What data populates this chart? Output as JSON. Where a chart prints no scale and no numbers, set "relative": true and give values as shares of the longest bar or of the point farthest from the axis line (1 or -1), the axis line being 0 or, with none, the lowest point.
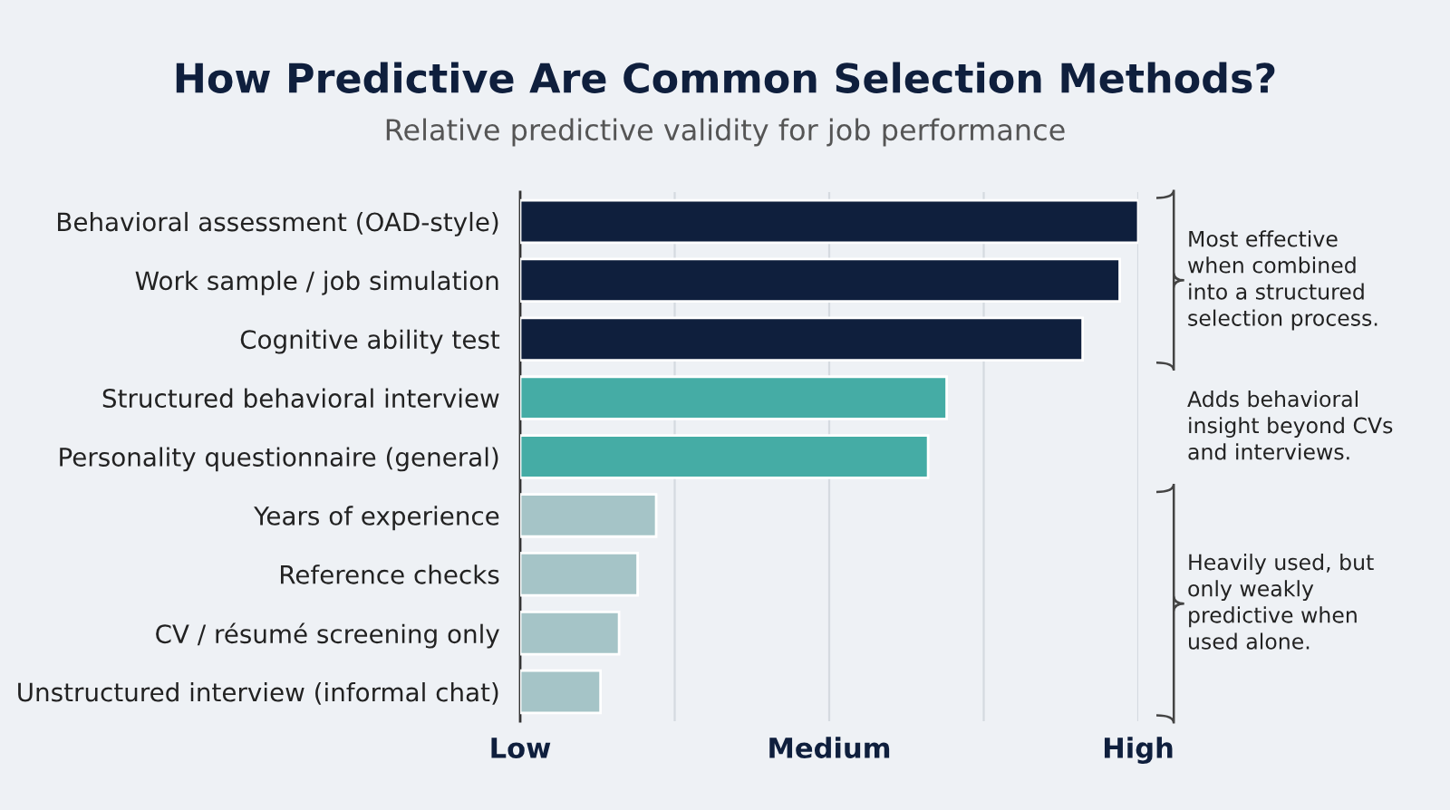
{
  "chart_data": {
    "type": "bar",
    "orientation": "horizontal",
    "title": "How Predictive Are Common Selection Methods?",
    "subtitle": "Relative predictive validity for job performance",
    "categories": [
      "Behavioral assessment (OAD-style)",
      "Work sample / job simulation",
      "Cognitive ability test",
      "Structured behavioral interview",
      "Personality questionnaire (general)",
      "Years of experience",
      "Reference checks",
      "CV / résumé screening only",
      "Unstructured interview (informal chat)"
    ],
    "values": [
      1.0,
      0.97,
      0.91,
      0.69,
      0.66,
      0.22,
      0.19,
      0.16,
      0.13
    ],
    "colors": [
      "#0f1f3d",
      "#0f1f3d",
      "#0f1f3d",
      "#45aca5",
      "#45aca5",
      "#a5c4c7",
      "#a5c4c7",
      "#a5c4c7",
      "#a5c4c7"
    ],
    "relative": true,
    "grid": "x",
    "annotations": [
      "Most effective when combined into a structured selection process.",
      "Adds behavioral insight beyond CVs and interviews.",
      "Heavily used, but only weakly predictive when used alone.",
      "Low",
      "Medium",
      "High"
    ]
  }
}
